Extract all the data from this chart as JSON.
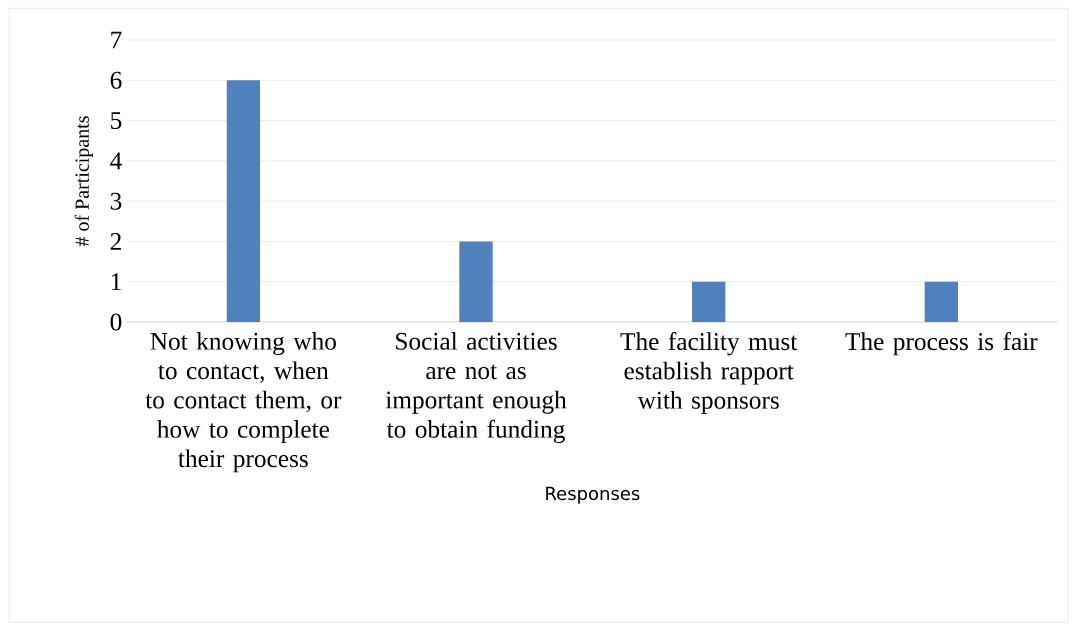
{
  "chart_data": {
    "type": "bar",
    "xlabel": "Responses",
    "ylabel": "# of Participants",
    "categories": [
      "Not knowing who to contact, when to contact them, or how to complete their process",
      "Social activities are not as important enough to obtain funding",
      "The facility must establish rapport with sponsors",
      "The process is fair"
    ],
    "values": [
      6,
      2,
      1,
      1
    ],
    "color": "#4f81bd",
    "ylim": [
      0,
      7
    ],
    "yticks": [
      0,
      1,
      2,
      3,
      4,
      5,
      6,
      7
    ],
    "grid": "y"
  }
}
